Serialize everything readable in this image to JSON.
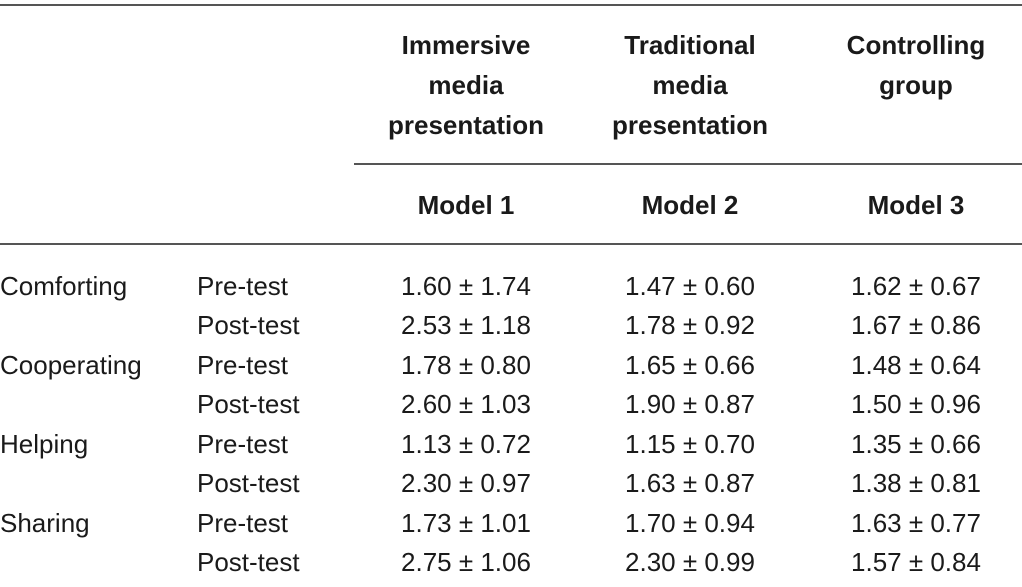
{
  "header": {
    "col1": "Immersive\nmedia\npresentation",
    "col2": "Traditional\nmedia\npresentation",
    "col3": "Controlling\ngroup",
    "model1": "Model 1",
    "model2": "Model 2",
    "model3": "Model 3"
  },
  "rows": [
    {
      "category": "Comforting",
      "test": "Pre-test",
      "v1": "1.60 ± 1.74",
      "v2": "1.47 ± 0.60",
      "v3": "1.62 ± 0.67"
    },
    {
      "category": "",
      "test": "Post-test",
      "v1": "2.53 ± 1.18",
      "v2": "1.78 ± 0.92",
      "v3": "1.67 ± 0.86"
    },
    {
      "category": "Cooperating",
      "test": "Pre-test",
      "v1": "1.78 ± 0.80",
      "v2": "1.65 ± 0.66",
      "v3": "1.48 ± 0.64"
    },
    {
      "category": "",
      "test": "Post-test",
      "v1": "2.60 ± 1.03",
      "v2": "1.90 ± 0.87",
      "v3": "1.50 ± 0.96"
    },
    {
      "category": "Helping",
      "test": "Pre-test",
      "v1": "1.13 ± 0.72",
      "v2": "1.15 ± 0.70",
      "v3": "1.35 ± 0.66"
    },
    {
      "category": "",
      "test": "Post-test",
      "v1": "2.30 ± 0.97",
      "v2": "1.63 ± 0.87",
      "v3": "1.38 ± 0.81"
    },
    {
      "category": "Sharing",
      "test": "Pre-test",
      "v1": "1.73 ± 1.01",
      "v2": "1.70 ± 0.94",
      "v3": "1.63 ± 0.77"
    },
    {
      "category": "",
      "test": "Post-test",
      "v1": "2.75 ± 1.06",
      "v2": "2.30 ± 0.99",
      "v3": "1.57 ± 0.84"
    }
  ]
}
